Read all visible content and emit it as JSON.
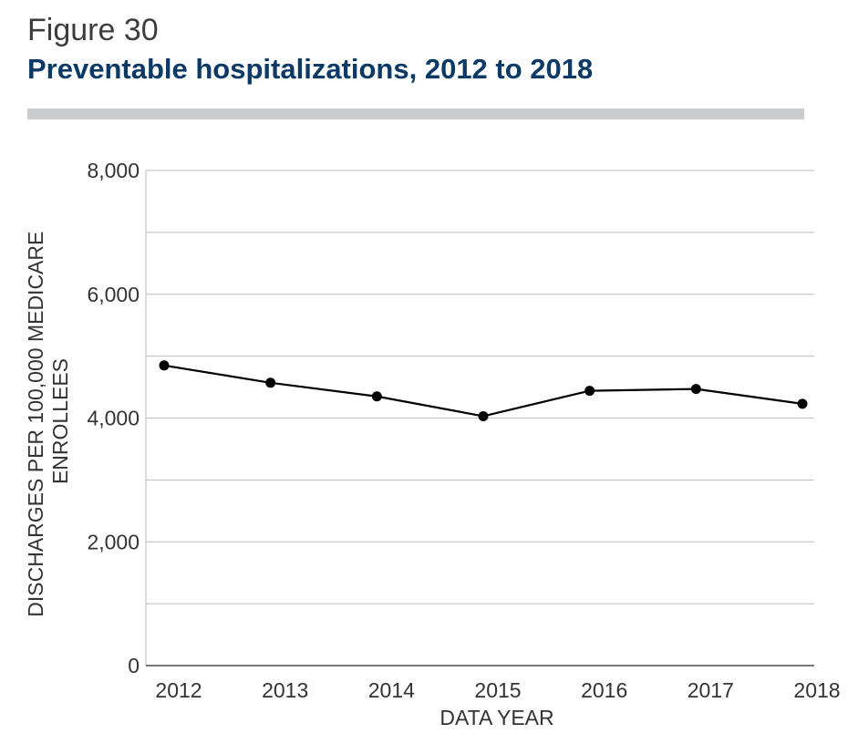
{
  "figure_label": "Figure 30",
  "colors": {
    "title": "#0b3a66",
    "rule": "#cbcccd",
    "grid": "#bdbdbd",
    "axis": "#4a4a4a",
    "line": "#000000",
    "text": "#333333"
  },
  "chart_data": {
    "type": "line",
    "title": "Preventable hospitalizations, 2012 to 2018",
    "xlabel": "DATA YEAR",
    "ylabel_lines": [
      "DISCHARGES PER 100,000 MEDICARE",
      "ENROLLEES"
    ],
    "x": [
      "2012",
      "2013",
      "2014",
      "2015",
      "2016",
      "2017",
      "2018"
    ],
    "series": [
      {
        "values": [
          4850,
          4570,
          4350,
          4030,
          4440,
          4470,
          4230
        ]
      }
    ],
    "ylim": [
      0,
      8000
    ],
    "y_ticks": [
      {
        "value": 0,
        "label": "0"
      },
      {
        "value": 2000,
        "label": "2,000"
      },
      {
        "value": 4000,
        "label": "4,000"
      },
      {
        "value": 6000,
        "label": "6,000"
      },
      {
        "value": 8000,
        "label": "8,000"
      }
    ],
    "gridlines": [
      1000,
      2000,
      3000,
      4000,
      5000,
      6000,
      7000,
      8000
    ],
    "grid": true,
    "markers": true
  }
}
